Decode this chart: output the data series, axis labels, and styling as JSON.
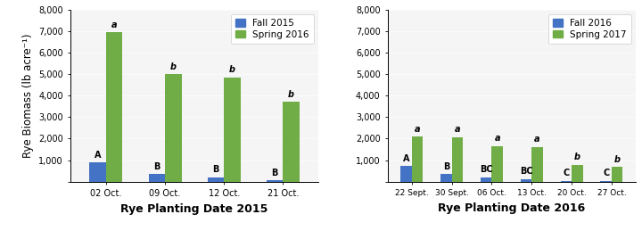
{
  "chart1": {
    "title": "Rye Planting Date 2015",
    "categories": [
      "02 Oct.",
      "09 Oct.",
      "12 Oct.",
      "21 Oct."
    ],
    "fall_values": [
      880,
      360,
      200,
      60
    ],
    "spring_values": [
      6950,
      5000,
      4850,
      3700
    ],
    "fall_label": "Fall 2015",
    "spring_label": "Spring 2016",
    "fall_letters": [
      "A",
      "B",
      "B",
      "B"
    ],
    "spring_letters": [
      "a",
      "b",
      "b",
      "b"
    ]
  },
  "chart2": {
    "title": "Rye Planting Date 2016",
    "categories": [
      "22 Sept.",
      "30 Sept.",
      "06 Oct.",
      "13 Oct.",
      "20 Oct.",
      "27 Oct."
    ],
    "fall_values": [
      730,
      360,
      200,
      120,
      30,
      30
    ],
    "spring_values": [
      2100,
      2080,
      1650,
      1620,
      780,
      680
    ],
    "fall_label": "Fall 2016",
    "spring_label": "Spring 2017",
    "fall_letters": [
      "A",
      "B",
      "BC",
      "BC",
      "C",
      "C"
    ],
    "spring_letters": [
      "a",
      "a",
      "a",
      "a",
      "b",
      "b"
    ]
  },
  "ylabel": "Rye Biomass (lb acre⁻¹)",
  "ylim": [
    0,
    8000
  ],
  "yticks": [
    0,
    1000,
    2000,
    3000,
    4000,
    5000,
    6000,
    7000,
    8000
  ],
  "ytick_labels": [
    "",
    "1,000",
    "2,000",
    "3,000",
    "4,000",
    "5,000",
    "6,000",
    "7,000",
    "8,000"
  ],
  "fall_color": "#4472C4",
  "spring_color": "#70AD47",
  "bar_width": 0.28,
  "letter_fontsize": 7,
  "axis_label_fontsize": 8.5,
  "tick_fontsize": 7,
  "legend_fontsize": 7.5,
  "title_fontsize": 9,
  "bg_color": "#f5f5f5"
}
